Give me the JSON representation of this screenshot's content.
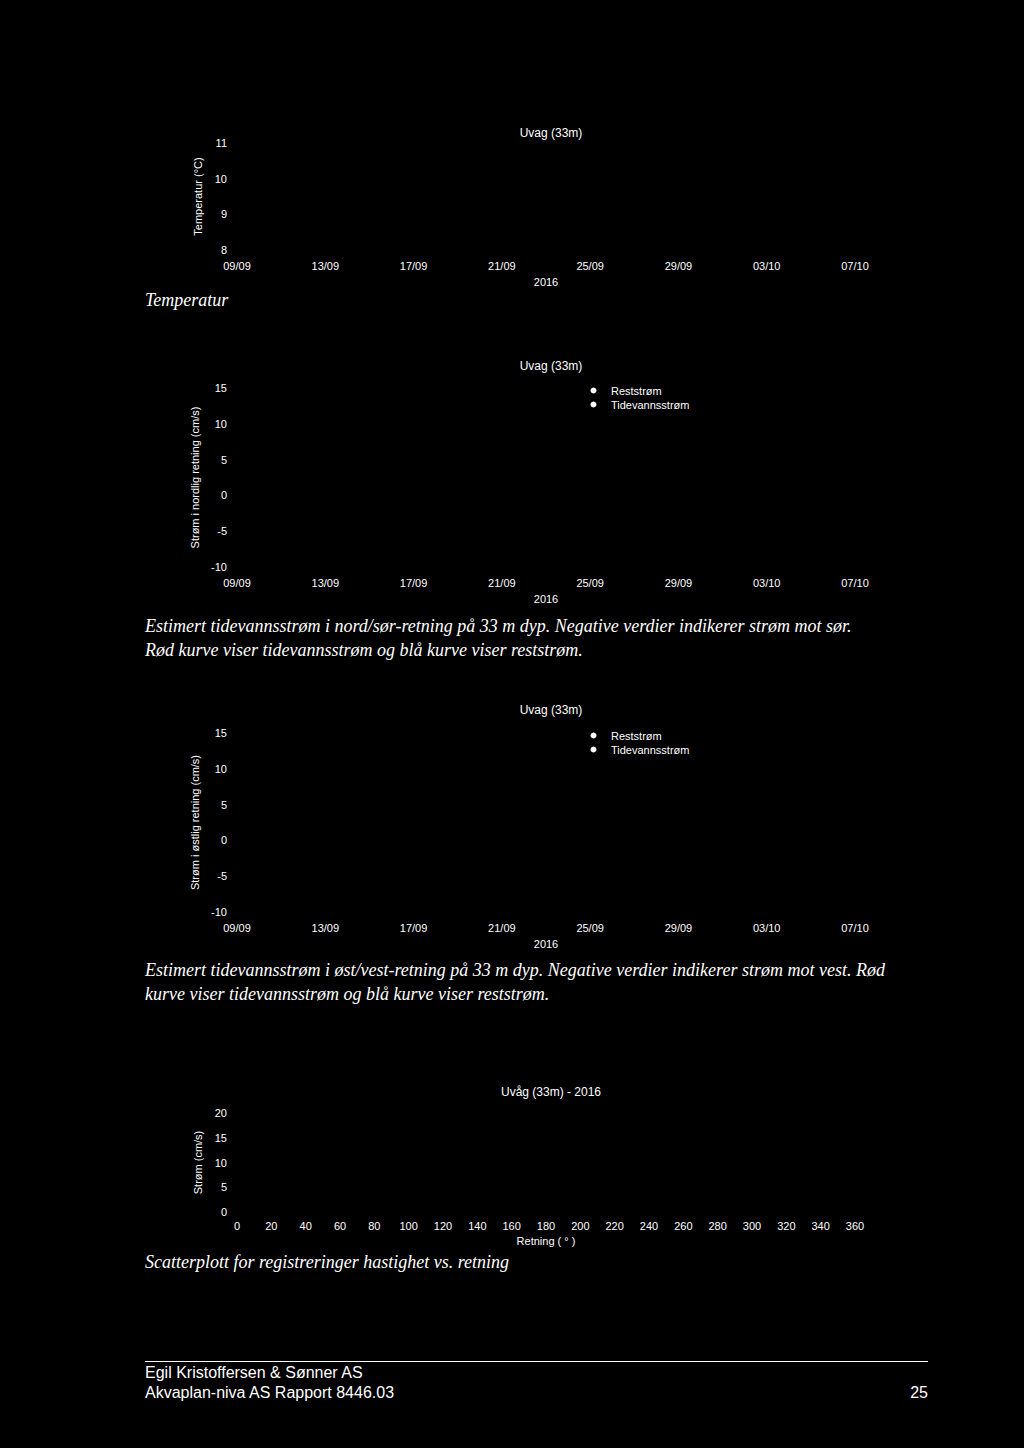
{
  "chart_data": [
    {
      "type": "line",
      "title": "Uvag (33m)",
      "ylabel": "Temperatur (°C)",
      "xlabel": "2016",
      "categories": [
        "09/09",
        "13/09",
        "17/09",
        "21/09",
        "25/09",
        "29/09",
        "03/10",
        "07/10"
      ],
      "series": [
        {
          "color": "#000000",
          "values": [
            null,
            null,
            null,
            null,
            null,
            null,
            null,
            null
          ]
        }
      ],
      "ylim": [
        8,
        11
      ],
      "yticks": [
        8,
        9,
        10,
        11
      ],
      "grid": false
    },
    {
      "type": "line",
      "title": "Uvag (33m)",
      "ylabel": "Strøm i nordlig retning (cm/s)",
      "xlabel": "2016",
      "categories": [
        "09/09",
        "13/09",
        "17/09",
        "21/09",
        "25/09",
        "29/09",
        "03/10",
        "07/10"
      ],
      "series": [
        {
          "name": "Reststrøm",
          "color": "#000000",
          "values": [
            null,
            null,
            null,
            null,
            null,
            null,
            null,
            null
          ]
        },
        {
          "name": "Tidevannsstrøm",
          "color": "#000000",
          "values": [
            null,
            null,
            null,
            null,
            null,
            null,
            null,
            null
          ]
        }
      ],
      "ylim": [
        -10,
        15
      ],
      "yticks": [
        -10,
        -5,
        0,
        5,
        10,
        15
      ],
      "grid": false,
      "legend": "top"
    },
    {
      "type": "line",
      "title": "Uvag (33m)",
      "ylabel": "Strøm i østlig retning (cm/s)",
      "xlabel": "2016",
      "categories": [
        "09/09",
        "13/09",
        "17/09",
        "21/09",
        "25/09",
        "29/09",
        "03/10",
        "07/10"
      ],
      "series": [
        {
          "name": "Reststrøm",
          "color": "#000000",
          "values": [
            null,
            null,
            null,
            null,
            null,
            null,
            null,
            null
          ]
        },
        {
          "name": "Tidevannsstrøm",
          "color": "#000000",
          "values": [
            null,
            null,
            null,
            null,
            null,
            null,
            null,
            null
          ]
        }
      ],
      "ylim": [
        -10,
        15
      ],
      "yticks": [
        -10,
        -5,
        0,
        5,
        10,
        15
      ],
      "grid": false,
      "legend": "top"
    },
    {
      "type": "scatter",
      "title": "Uvåg (33m) - 2016",
      "xlabel": "Retning ( ° )",
      "ylabel": "Strøm (cm/s)",
      "x": [],
      "values": [],
      "color": "#000000",
      "xlim": [
        0,
        360
      ],
      "xticks": [
        0,
        20,
        40,
        60,
        80,
        100,
        120,
        140,
        160,
        180,
        200,
        220,
        240,
        260,
        280,
        300,
        320,
        340,
        360
      ],
      "ylim": [
        0,
        20
      ],
      "yticks": [
        0,
        5,
        10,
        15,
        20
      ],
      "grid": false
    }
  ],
  "page": {
    "captions": [
      [
        "Temperatur"
      ],
      [
        "Estimert tidevannsstrøm i nord/sør-retning på 33 m dyp. Negative verdier indikerer strøm mot sør.",
        "Rød kurve viser tidevannsstrøm og blå kurve viser reststrøm."
      ],
      [
        "Estimert tidevannsstrøm i øst/vest-retning på 33 m dyp. Negative verdier indikerer strøm mot vest. Rød",
        "kurve viser tidevannsstrøm og blå kurve viser reststrøm."
      ],
      [
        "Scatterplott for registreringer hastighet vs. retning"
      ]
    ],
    "footer": {
      "left": [
        "Egil Kristoffersen & Sønner AS",
        "Akvaplan-niva AS Rapport 8446.03"
      ],
      "page_number": 25
    }
  }
}
